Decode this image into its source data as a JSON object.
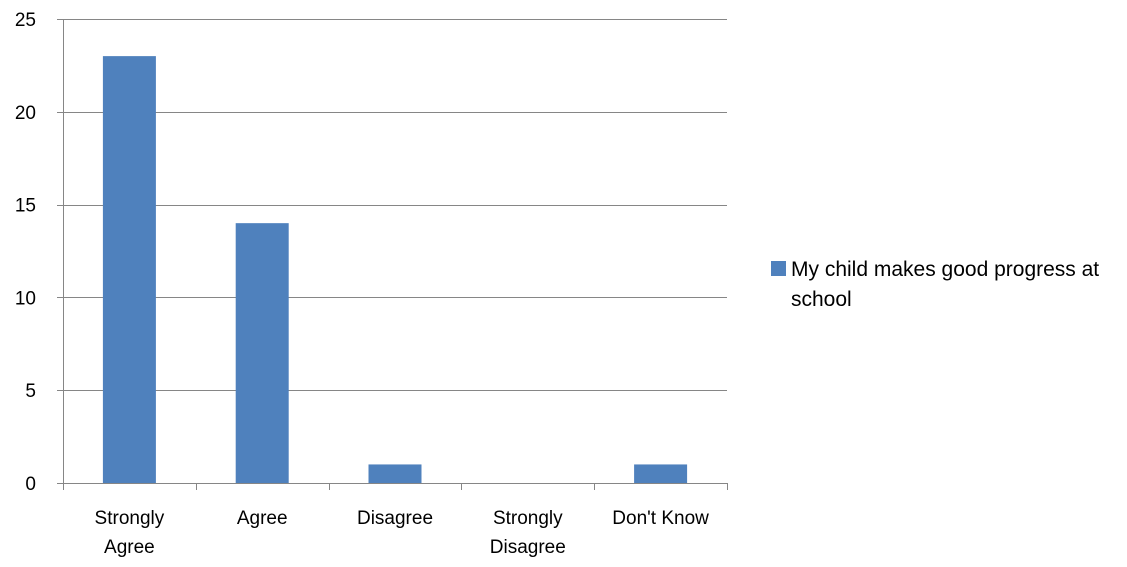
{
  "chart_data": {
    "type": "bar",
    "title": "",
    "xlabel": "",
    "ylabel": "",
    "categories": [
      [
        "Strongly",
        "Agree"
      ],
      [
        "Agree"
      ],
      [
        "Disagree"
      ],
      [
        "Strongly",
        "Disagree"
      ],
      [
        "Don't Know"
      ]
    ],
    "series": [
      {
        "name": "My child makes good progress at school",
        "values": [
          23,
          14,
          1,
          0,
          1
        ],
        "color": "#4f81bd"
      }
    ],
    "ylim": [
      0,
      25
    ],
    "yticks": [
      "0",
      "5",
      "10",
      "15",
      "20",
      "25"
    ],
    "grid": true,
    "legend_position": "right"
  }
}
